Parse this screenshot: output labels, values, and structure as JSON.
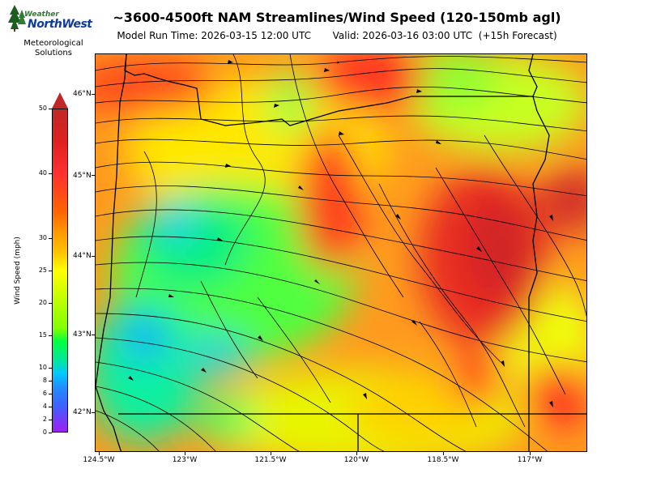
{
  "logo": {
    "top_text": "Weather",
    "main_text": "NorthWest",
    "sub_line1": "Meteorological",
    "sub_line2": "Solutions",
    "icon": "evergreen-trees-logo"
  },
  "title": "~3600-4500ft NAM Streamlines/Wind Speed (120-150mb agl)",
  "subtitle": "Model Run Time: 2026-03-15 12:00 UTC       Valid: 2026-03-16 03:00 UTC  (+15h Forecast)",
  "colorbar": {
    "label": "Wind Speed (mph)",
    "ticks": [
      "0",
      "2",
      "4",
      "6",
      "8",
      "10",
      "15",
      "20",
      "25",
      "30",
      "40",
      "50"
    ],
    "colors": [
      "#a020f0",
      "#1e90ff",
      "#00c8ff",
      "#00ff40",
      "#ffff00",
      "#ff9900",
      "#ff3030",
      "#c02828"
    ]
  },
  "lat_labels": [
    "46°N",
    "45°N",
    "44°N",
    "43°N",
    "42°N"
  ],
  "lon_labels": [
    "124.5°W",
    "123°W",
    "121.5°W",
    "120°W",
    "118.5°W",
    "117°W"
  ],
  "map": {
    "region": "Oregon",
    "field": "wind speed shaded with streamlines"
  }
}
